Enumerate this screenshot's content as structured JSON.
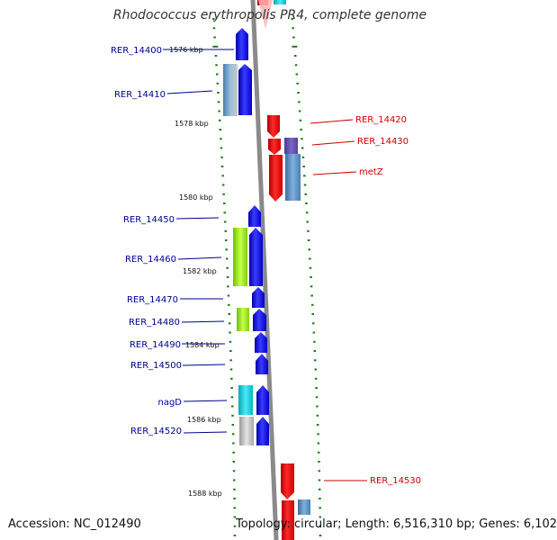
{
  "title": "Rhodococcus erythropolis PR4, complete genome",
  "footer": {
    "accession": "Accession: NC_012490",
    "summary": "Topology: circular; Length: 6,516,310 bp; Genes: 6,102"
  },
  "colors": {
    "forward_label": "#00008b",
    "reverse_label": "#cc0000",
    "tick": "#1a7a1a",
    "backbone": "#8a8a8a"
  },
  "scale_labels": [
    "1576 kbp",
    "1578 kbp",
    "1580 kbp",
    "1582 kbp",
    "1584 kbp",
    "1586 kbp",
    "1588 kbp"
  ],
  "forward_genes": [
    "RER_14400",
    "RER_14410",
    "RER_14450",
    "RER_14460",
    "RER_14470",
    "RER_14480",
    "RER_14490",
    "RER_14500",
    "nagD",
    "RER_14520"
  ],
  "reverse_genes": [
    "RER_14420",
    "RER_14430",
    "metZ",
    "RER_14530"
  ]
}
